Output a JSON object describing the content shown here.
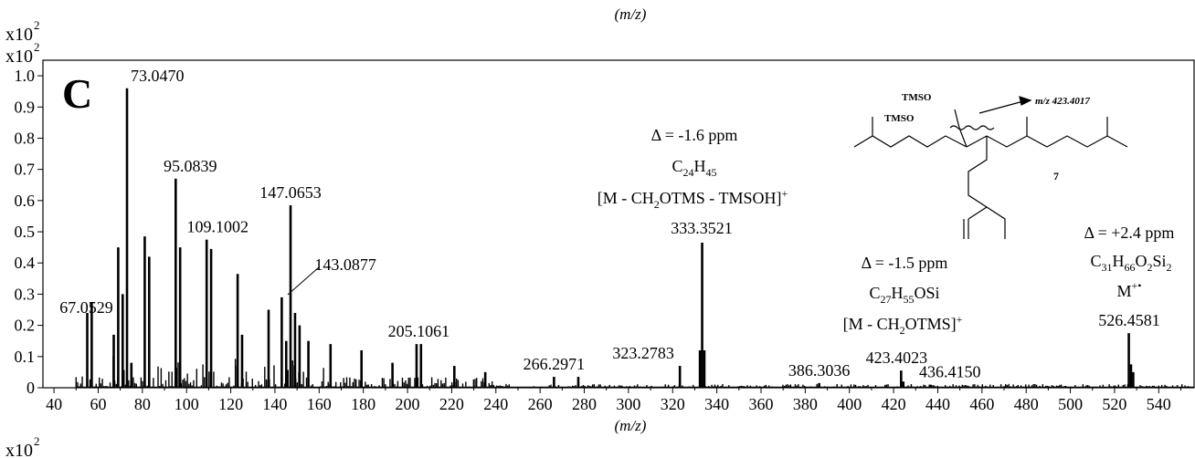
{
  "top_fragment": {
    "multiplier_base": "x10",
    "multiplier_exp": "2",
    "xlabel": "(m/z)"
  },
  "chart_data": {
    "type": "bar",
    "panel_label": "C",
    "y_multiplier_base": "x10",
    "y_multiplier_exp": "2",
    "xlabel": "(m/z)",
    "xlim": [
      35,
      556
    ],
    "ylim": [
      0,
      1.05
    ],
    "x_ticks": [
      40,
      60,
      80,
      100,
      120,
      140,
      160,
      180,
      200,
      220,
      240,
      260,
      280,
      300,
      320,
      340,
      360,
      380,
      400,
      420,
      440,
      460,
      480,
      500,
      520,
      540
    ],
    "y_ticks": [
      "0",
      "0.1",
      "0.2",
      "0.3",
      "0.4",
      "0.5",
      "0.6",
      "0.7",
      "0.8",
      "0.9",
      "1.0"
    ],
    "grid": false,
    "major_peaks": [
      {
        "mz": 55.05,
        "value": 0.24
      },
      {
        "mz": 57.07,
        "value": 0.275
      },
      {
        "mz": 67.05,
        "value": 0.17
      },
      {
        "mz": 69.07,
        "value": 0.45
      },
      {
        "mz": 71.09,
        "value": 0.3
      },
      {
        "mz": 73.047,
        "value": 0.96
      },
      {
        "mz": 75.03,
        "value": 0.08
      },
      {
        "mz": 81.07,
        "value": 0.485
      },
      {
        "mz": 83.09,
        "value": 0.42
      },
      {
        "mz": 95.084,
        "value": 0.67
      },
      {
        "mz": 97.1,
        "value": 0.45
      },
      {
        "mz": 109.1,
        "value": 0.475
      },
      {
        "mz": 111.12,
        "value": 0.445
      },
      {
        "mz": 123.12,
        "value": 0.365
      },
      {
        "mz": 125.13,
        "value": 0.17
      },
      {
        "mz": 137.13,
        "value": 0.25
      },
      {
        "mz": 143.088,
        "value": 0.29
      },
      {
        "mz": 145.1,
        "value": 0.15
      },
      {
        "mz": 147.065,
        "value": 0.585
      },
      {
        "mz": 149.1,
        "value": 0.24
      },
      {
        "mz": 151.15,
        "value": 0.2
      },
      {
        "mz": 155.15,
        "value": 0.15
      },
      {
        "mz": 165.16,
        "value": 0.14
      },
      {
        "mz": 179.18,
        "value": 0.12
      },
      {
        "mz": 193.2,
        "value": 0.08
      },
      {
        "mz": 204.1,
        "value": 0.14
      },
      {
        "mz": 206.1,
        "value": 0.14
      },
      {
        "mz": 221.2,
        "value": 0.07
      },
      {
        "mz": 235.2,
        "value": 0.05
      },
      {
        "mz": 266.3,
        "value": 0.035
      },
      {
        "mz": 277.3,
        "value": 0.035
      },
      {
        "mz": 323.278,
        "value": 0.07
      },
      {
        "mz": 332.35,
        "value": 0.12
      },
      {
        "mz": 333.352,
        "value": 0.465
      },
      {
        "mz": 334.35,
        "value": 0.12
      },
      {
        "mz": 386.3,
        "value": 0.015
      },
      {
        "mz": 423.402,
        "value": 0.055
      },
      {
        "mz": 424.4,
        "value": 0.02
      },
      {
        "mz": 436.415,
        "value": 0.01
      },
      {
        "mz": 526.458,
        "value": 0.175
      },
      {
        "mz": 527.46,
        "value": 0.075
      },
      {
        "mz": 528.46,
        "value": 0.05
      }
    ],
    "peak_labels": [
      {
        "mz": 73.047,
        "y": 0.96,
        "text": "73.0470"
      },
      {
        "mz": 95.084,
        "y": 0.67,
        "text": "95.0839"
      },
      {
        "mz": 147.065,
        "y": 0.585,
        "text": "147.0653"
      },
      {
        "mz": 109.1,
        "y": 0.475,
        "text": "109.1002"
      },
      {
        "mz": 143.088,
        "y": 0.29,
        "text": "143.0877"
      },
      {
        "mz": 67.05,
        "y": 0.17,
        "text": "67.0529"
      },
      {
        "mz": 205.1,
        "y": 0.14,
        "text": "205.1061"
      },
      {
        "mz": 266.3,
        "y": 0.035,
        "text": "266.2971"
      },
      {
        "mz": 323.278,
        "y": 0.07,
        "text": "323.2783"
      },
      {
        "mz": 386.3,
        "y": 0.015,
        "text": "386.3036"
      },
      {
        "mz": 423.402,
        "y": 0.055,
        "text": "423.4023"
      },
      {
        "mz": 436.415,
        "y": 0.01,
        "text": "436.4150"
      }
    ],
    "annotation_333": {
      "delta": "Δ = -1.6 ppm",
      "formula": [
        {
          "t": "C"
        },
        {
          "t": "24",
          "sub": true
        },
        {
          "t": "H"
        },
        {
          "t": "45",
          "sub": true
        }
      ],
      "ion": "[M - CH",
      "ion_sub": "2",
      "ion_tail": "OTMS - TMSOH]",
      "ion_sup": "+",
      "mass": "333.3521"
    },
    "annotation_423": {
      "delta": "Δ = -1.5 ppm",
      "formula": [
        {
          "t": "C"
        },
        {
          "t": "27",
          "sub": true
        },
        {
          "t": "H"
        },
        {
          "t": "55",
          "sub": true
        },
        {
          "t": "OSi"
        }
      ],
      "ion": "[M - CH",
      "ion_sub": "2",
      "ion_tail": "OTMS]",
      "ion_sup": "+"
    },
    "annotation_526": {
      "delta": "Δ = +2.4 ppm",
      "formula": [
        {
          "t": "C"
        },
        {
          "t": "31",
          "sub": true
        },
        {
          "t": "H"
        },
        {
          "t": "66",
          "sub": true
        },
        {
          "t": "O"
        },
        {
          "t": "2",
          "sub": true
        },
        {
          "t": "Si"
        },
        {
          "t": "2",
          "sub": true
        }
      ],
      "ion": "M",
      "ion_sup": "+•",
      "mass": "526.4581"
    },
    "structure": {
      "tmso_1": "TMSO",
      "tmso_2": "TMSO",
      "fragment_label": "m/z 423.4017",
      "compound_number": "7"
    }
  },
  "bottom_fragment": {
    "multiplier_base": "x10",
    "multiplier_exp": "2",
    "xlabel": "(m/z)"
  }
}
